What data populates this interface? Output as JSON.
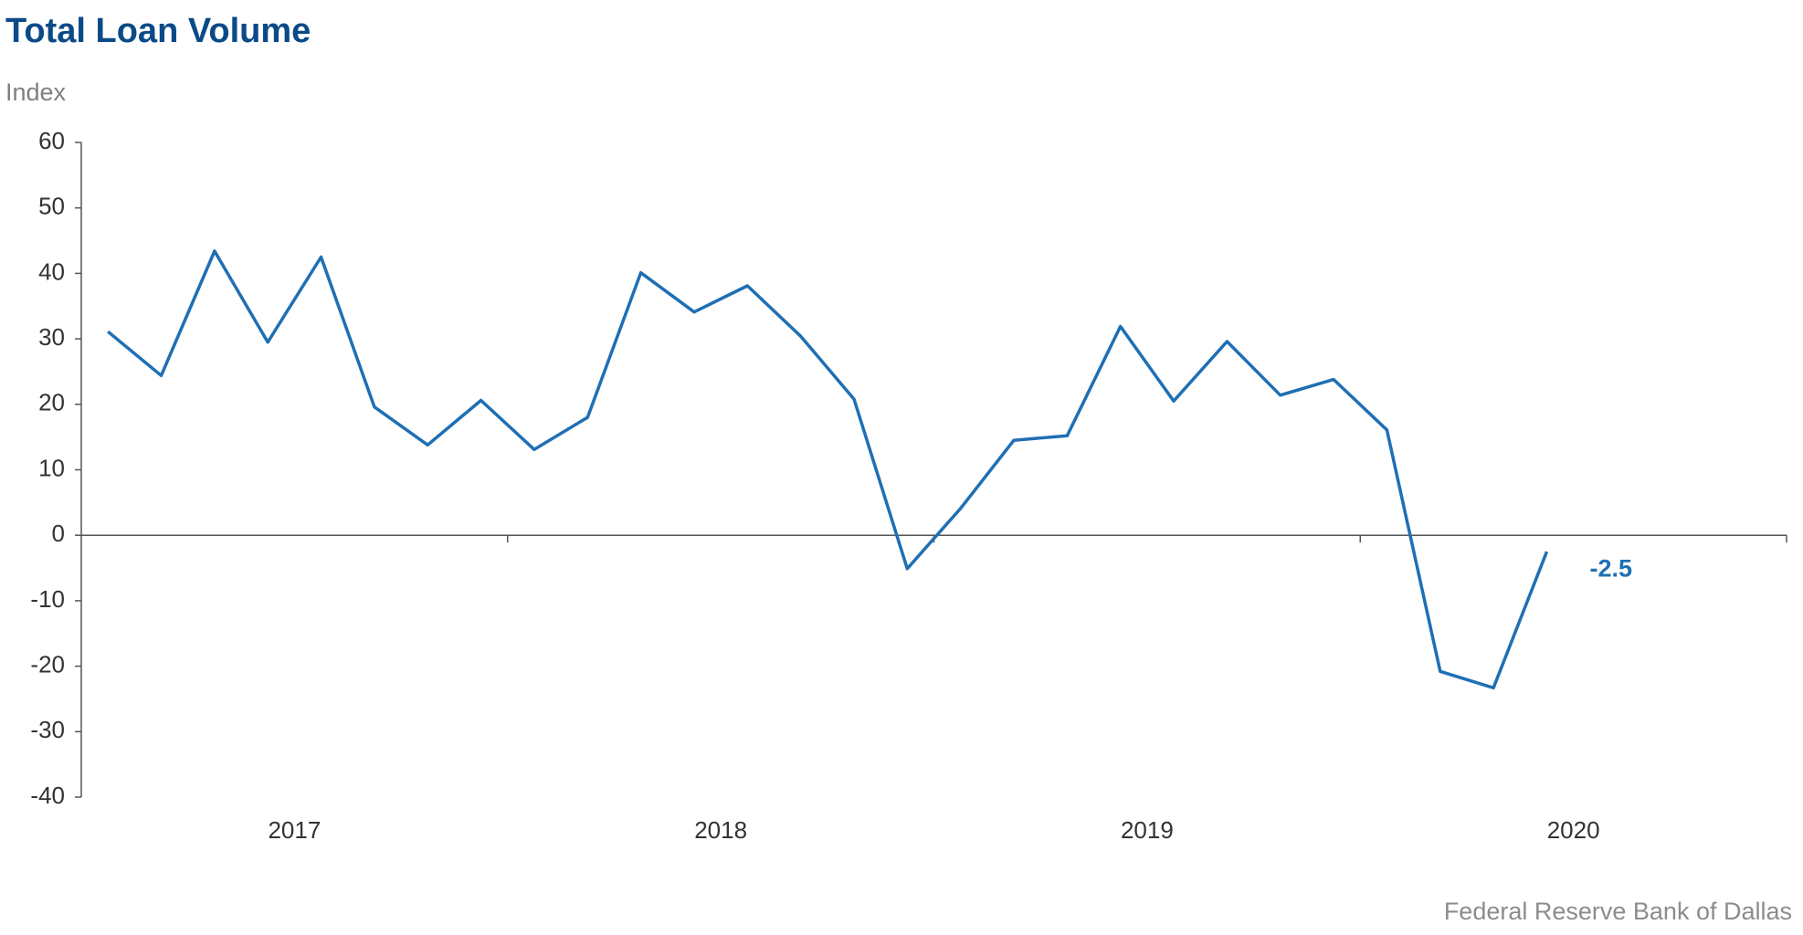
{
  "chart_data": {
    "type": "line",
    "title": "Total Loan Volume",
    "y_axis_label": "Index",
    "source": "Federal Reserve Bank of Dallas",
    "x": [
      2017.0625,
      2017.1875,
      2017.3125,
      2017.4375,
      2017.5625,
      2017.6875,
      2017.8125,
      2017.9375,
      2018.0625,
      2018.1875,
      2018.3125,
      2018.4375,
      2018.5625,
      2018.6875,
      2018.8125,
      2018.9375,
      2019.0625,
      2019.1875,
      2019.3125,
      2019.4375,
      2019.5625,
      2019.6875,
      2019.8125,
      2019.9375,
      2020.0625,
      2020.1875,
      2020.3125,
      2020.4375
    ],
    "series": [
      {
        "name": "Total Loan Volume",
        "color": "#1f6fb4",
        "values": [
          31.1,
          24.4,
          43.4,
          29.5,
          42.5,
          19.6,
          13.8,
          20.6,
          13.1,
          18.0,
          40.1,
          34.1,
          38.1,
          30.4,
          20.8,
          -5.1,
          4.1,
          14.5,
          15.2,
          31.9,
          20.5,
          29.6,
          21.4,
          23.8,
          16.1,
          -20.8,
          -23.3,
          -2.5
        ]
      }
    ],
    "last_value_label": "-2.5",
    "xlim": [
      2017,
      2021
    ],
    "xticks": [
      2018,
      2019,
      2020,
      2021
    ],
    "year_labels": [
      "2017",
      "2018",
      "2019",
      "2020"
    ],
    "ylim": [
      -40,
      60
    ],
    "yticks": [
      -40,
      -30,
      -20,
      -10,
      0,
      10,
      20,
      30,
      40,
      50,
      60
    ]
  }
}
